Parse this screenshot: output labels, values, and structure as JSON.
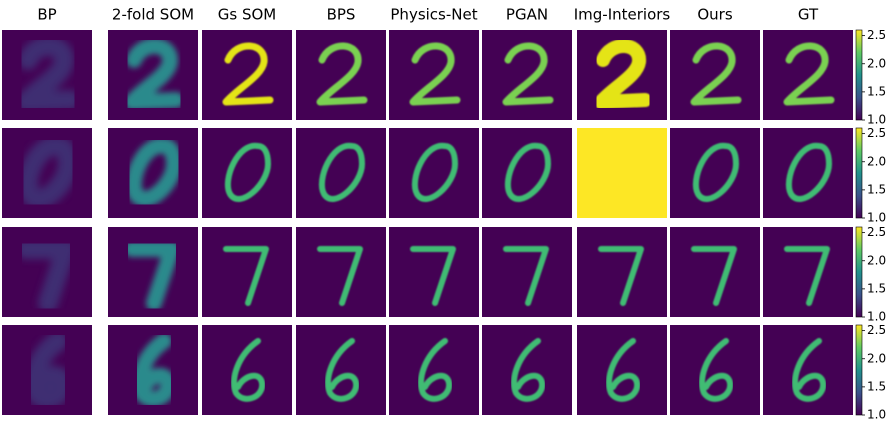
{
  "columns": [
    "BP",
    "2-fold SOM",
    "Gs SOM",
    "BPS",
    "Physics-Net",
    "PGAN",
    "Img-Interiors",
    "Ours",
    "GT"
  ],
  "colorbar": {
    "lim": [
      1.0,
      2.6
    ],
    "ticks": [
      {
        "value": 1.0,
        "label": "1.0"
      },
      {
        "value": 1.5,
        "label": "1.5"
      },
      {
        "value": 2.0,
        "label": "2.0"
      },
      {
        "value": 2.5,
        "label": "2.5"
      }
    ]
  }
}
